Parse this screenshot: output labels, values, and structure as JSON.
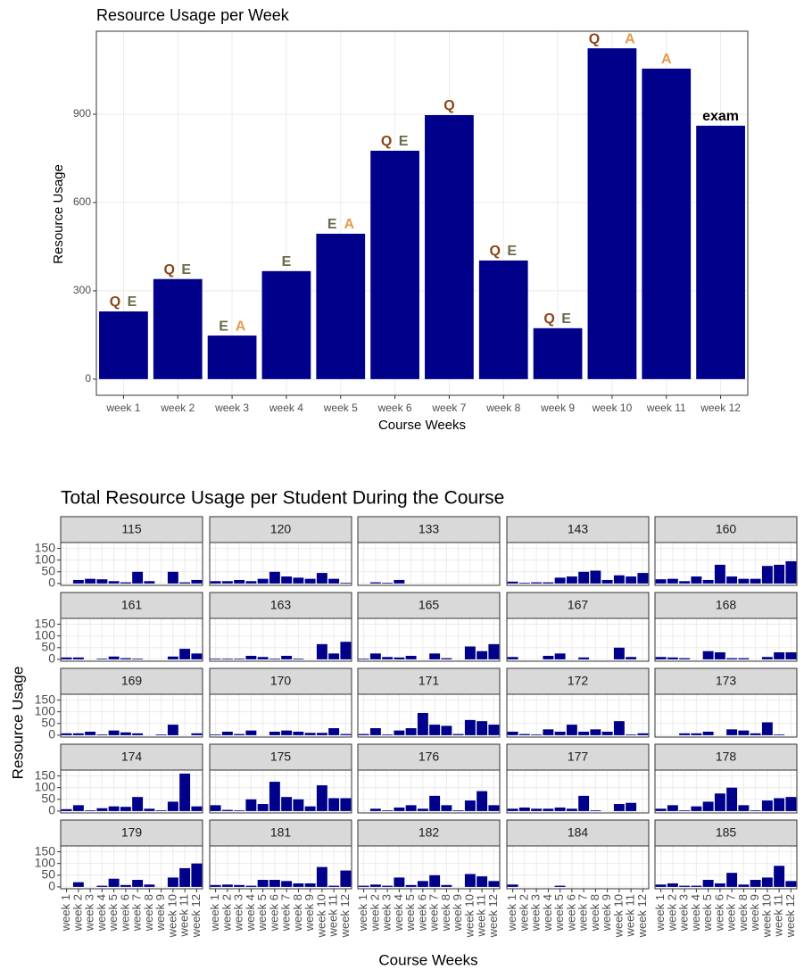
{
  "chart_data": [
    {
      "type": "bar",
      "title": "Resource Usage per Week",
      "x_label": "Course Weeks",
      "y_label": "Resource Usage",
      "categories": [
        "week 1",
        "week 2",
        "week 3",
        "week 4",
        "week 5",
        "week 6",
        "week 7",
        "week 8",
        "week 9",
        "week 10",
        "week 11",
        "week 12"
      ],
      "values": [
        230,
        340,
        148,
        367,
        494,
        776,
        897,
        403,
        173,
        1124,
        1055,
        861
      ],
      "color": "#00008b",
      "ylim": [
        -55,
        1182
      ],
      "yticks": [
        0,
        300,
        600,
        900
      ],
      "grid": true,
      "bar_labels": [
        [
          "Q",
          "E"
        ],
        [
          "Q",
          "E"
        ],
        [
          "E",
          "A"
        ],
        [
          "E"
        ],
        [
          "E",
          "A"
        ],
        [
          "Q",
          "E"
        ],
        [
          "Q"
        ],
        [
          "Q",
          "E"
        ],
        [
          "Q",
          "E"
        ],
        [
          "Q",
          "A"
        ],
        [
          "A"
        ],
        [
          "exam"
        ]
      ],
      "label_colors": {
        "Q": "#8b4513",
        "E": "#6b6b4a",
        "A": "#e39b4b",
        "exam": "#000000"
      }
    },
    {
      "type": "facet_bar",
      "title": "Total Resource Usage per Student During the Course",
      "x_label": "Course Weeks",
      "y_label": "Resource Usage",
      "categories": [
        "week 1",
        "week 2",
        "week 3",
        "week 4",
        "week 5",
        "week 6",
        "week 7",
        "week 8",
        "week 9",
        "week 10",
        "week 11",
        "week 12"
      ],
      "color": "#00008b",
      "ylim": [
        -8,
        175
      ],
      "yticks": [
        0,
        50,
        100,
        150
      ],
      "grid": true,
      "panels": [
        {
          "label": "115",
          "values": [
            0,
            15,
            20,
            18,
            10,
            5,
            50,
            10,
            0,
            50,
            5,
            15
          ]
        },
        {
          "label": "120",
          "values": [
            10,
            10,
            15,
            10,
            20,
            50,
            30,
            25,
            20,
            45,
            20,
            3
          ]
        },
        {
          "label": "133",
          "values": [
            0,
            5,
            3,
            15,
            0,
            0,
            0,
            0,
            0,
            0,
            0,
            0
          ]
        },
        {
          "label": "143",
          "values": [
            8,
            3,
            5,
            5,
            25,
            30,
            50,
            55,
            15,
            35,
            30,
            45
          ]
        },
        {
          "label": "160",
          "values": [
            18,
            20,
            10,
            30,
            15,
            80,
            30,
            20,
            20,
            75,
            80,
            95
          ]
        },
        {
          "label": "161",
          "values": [
            8,
            8,
            0,
            3,
            12,
            5,
            3,
            0,
            0,
            12,
            45,
            25
          ]
        },
        {
          "label": "163",
          "values": [
            3,
            3,
            3,
            15,
            10,
            3,
            15,
            3,
            0,
            65,
            25,
            75
          ]
        },
        {
          "label": "165",
          "values": [
            3,
            25,
            10,
            8,
            15,
            0,
            25,
            5,
            0,
            55,
            35,
            65
          ]
        },
        {
          "label": "167",
          "values": [
            10,
            0,
            0,
            15,
            25,
            0,
            8,
            0,
            0,
            50,
            10,
            0
          ]
        },
        {
          "label": "168",
          "values": [
            10,
            8,
            5,
            0,
            35,
            30,
            5,
            5,
            0,
            10,
            30,
            30
          ]
        },
        {
          "label": "169",
          "values": [
            8,
            8,
            15,
            3,
            20,
            12,
            8,
            0,
            3,
            45,
            0,
            8
          ]
        },
        {
          "label": "170",
          "values": [
            3,
            15,
            5,
            20,
            0,
            15,
            20,
            15,
            10,
            10,
            30,
            5
          ]
        },
        {
          "label": "171",
          "values": [
            5,
            30,
            3,
            20,
            30,
            95,
            45,
            40,
            5,
            65,
            60,
            45
          ]
        },
        {
          "label": "172",
          "values": [
            15,
            5,
            3,
            25,
            15,
            45,
            15,
            25,
            15,
            60,
            3,
            8
          ]
        },
        {
          "label": "173",
          "values": [
            0,
            0,
            8,
            8,
            15,
            0,
            25,
            20,
            8,
            55,
            3,
            0
          ]
        },
        {
          "label": "174",
          "values": [
            8,
            25,
            3,
            12,
            20,
            18,
            60,
            10,
            3,
            40,
            160,
            20
          ]
        },
        {
          "label": "175",
          "values": [
            25,
            5,
            3,
            50,
            30,
            125,
            60,
            50,
            20,
            110,
            55,
            55
          ]
        },
        {
          "label": "176",
          "values": [
            0,
            10,
            3,
            15,
            25,
            10,
            65,
            25,
            3,
            45,
            85,
            25
          ]
        },
        {
          "label": "177",
          "values": [
            10,
            15,
            10,
            10,
            15,
            10,
            65,
            3,
            0,
            30,
            35,
            0
          ]
        },
        {
          "label": "178",
          "values": [
            10,
            25,
            3,
            20,
            40,
            75,
            100,
            25,
            3,
            45,
            55,
            60
          ]
        },
        {
          "label": "179",
          "values": [
            0,
            20,
            0,
            5,
            35,
            8,
            30,
            10,
            0,
            40,
            80,
            100
          ]
        },
        {
          "label": "181",
          "values": [
            8,
            10,
            8,
            5,
            30,
            30,
            25,
            15,
            15,
            85,
            5,
            70
          ]
        },
        {
          "label": "182",
          "values": [
            5,
            10,
            5,
            40,
            8,
            25,
            50,
            8,
            0,
            55,
            45,
            25
          ]
        },
        {
          "label": "184",
          "values": [
            10,
            0,
            0,
            0,
            5,
            0,
            0,
            0,
            0,
            0,
            0,
            0
          ]
        },
        {
          "label": "185",
          "values": [
            10,
            15,
            5,
            5,
            30,
            15,
            60,
            10,
            30,
            40,
            90,
            25
          ]
        }
      ]
    }
  ]
}
